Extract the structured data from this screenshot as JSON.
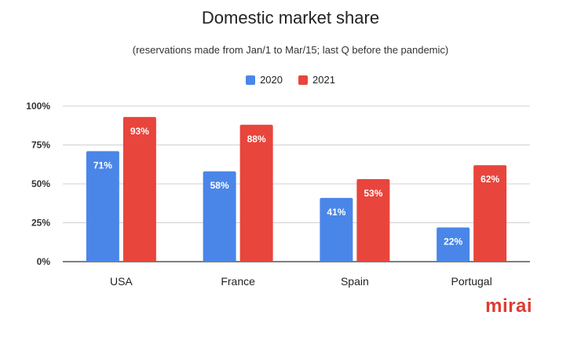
{
  "chart_data": {
    "type": "bar",
    "title": "Domestic market share",
    "subtitle": "(reservations made from Jan/1 to Mar/15; last Q before the pandemic)",
    "categories": [
      "USA",
      "France",
      "Spain",
      "Portugal"
    ],
    "series": [
      {
        "name": "2020",
        "color": "#4a86e8",
        "values": [
          71,
          58,
          41,
          22
        ],
        "labels": [
          "71%",
          "58%",
          "41%",
          "22%"
        ]
      },
      {
        "name": "2021",
        "color": "#e8453c",
        "values": [
          93,
          88,
          53,
          62
        ],
        "labels": [
          "93%",
          "88%",
          "53%",
          "62%"
        ]
      }
    ],
    "yticks": [
      0,
      25,
      50,
      75,
      100
    ],
    "ytick_labels": [
      "0%",
      "25%",
      "50%",
      "75%",
      "100%"
    ],
    "ylim": [
      0,
      100
    ],
    "grid": true,
    "legend_position": "top-center"
  },
  "brand": {
    "logo_text": "mirai",
    "color": "#e03c31"
  }
}
